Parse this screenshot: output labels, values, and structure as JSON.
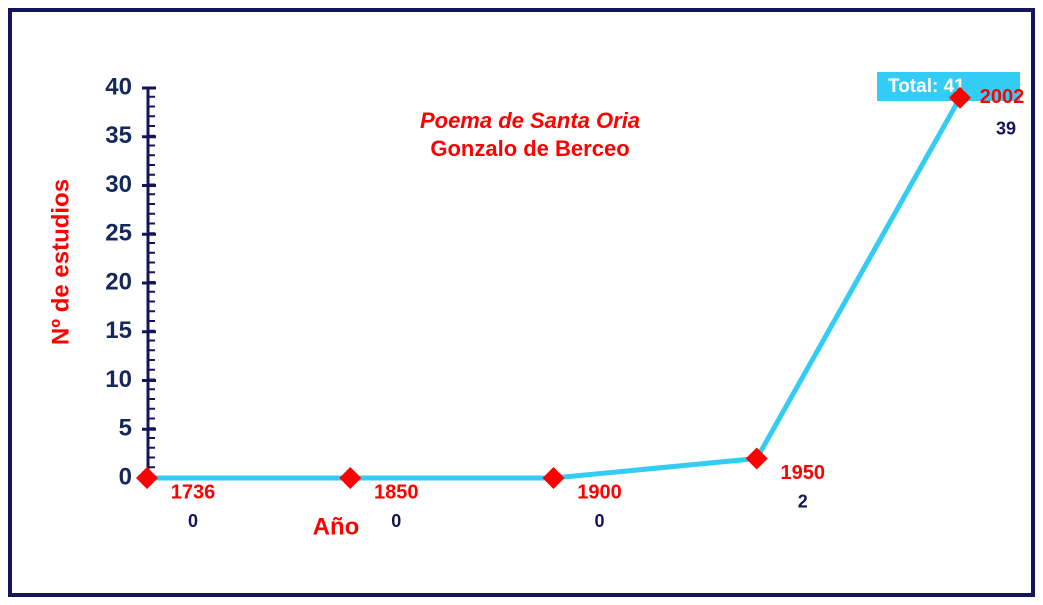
{
  "chart_data": {
    "type": "line",
    "title": "Poema de Santa Oria",
    "subtitle": "Gonzalo de Berceo",
    "x_label": "Año",
    "y_label": "Nº de estudios",
    "annotation": "Total: 41",
    "categories": [
      "1736",
      "1850",
      "1900",
      "1950",
      "2002"
    ],
    "series": [
      {
        "name": "Nº de estudios",
        "color": "#33ccf5",
        "marker_color": "#ff0000",
        "values": [
          0,
          0,
          0,
          2,
          39
        ]
      }
    ],
    "ylim": [
      0,
      40
    ],
    "yticks": [
      0,
      5,
      10,
      15,
      20,
      25,
      30,
      35,
      40
    ]
  }
}
